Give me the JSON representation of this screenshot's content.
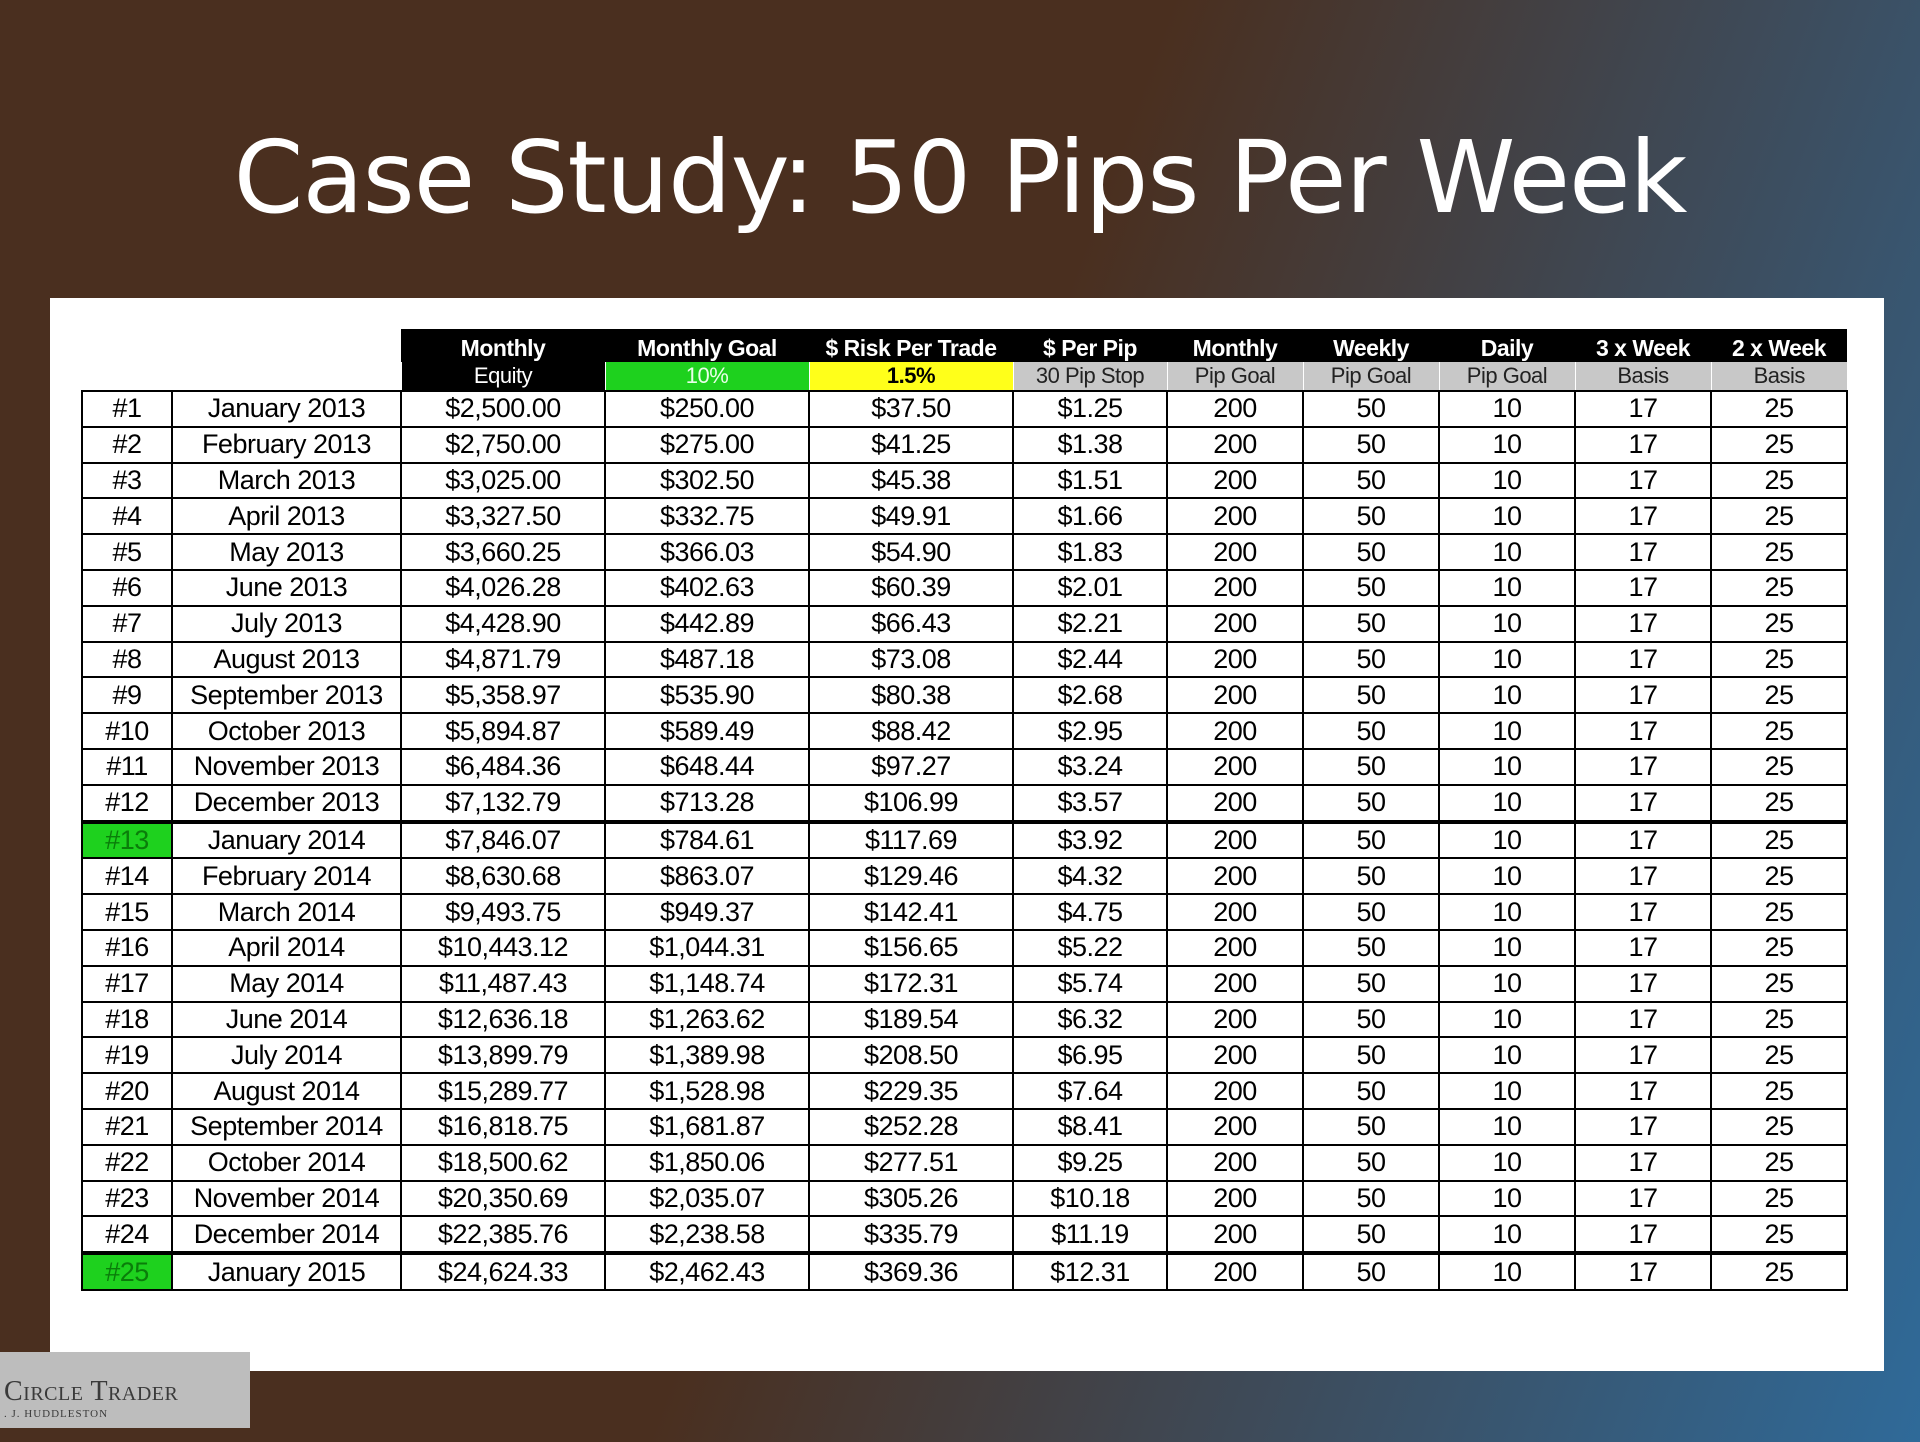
{
  "title": "Case Study: 50 Pips Per Week",
  "header_top": [
    "Monthly",
    "Monthly Goal",
    "$ Risk Per Trade",
    "$ Per Pip",
    "Monthly",
    "Weekly",
    "Daily",
    "3 x Week",
    "2 x Week"
  ],
  "header_bottom": [
    "Equity",
    "10%",
    "1.5%",
    "30 Pip Stop",
    "Pip Goal",
    "Pip Goal",
    "Pip Goal",
    "Basis",
    "Basis"
  ],
  "header_bottom_colors": {
    "green": "#1ed11e",
    "yellow": "#ffff1a",
    "gray": "#c8c8c8",
    "black": "#000000"
  },
  "highlight_color": "#1ed11e",
  "rows": [
    {
      "num": "#1",
      "month": "January 2013",
      "equity": "$2,500.00",
      "goal": "$250.00",
      "risk": "$37.50",
      "per_pip": "$1.25",
      "monthly_pips": "200",
      "weekly_pips": "50",
      "daily_pips": "10",
      "three_week": "17",
      "two_week": "25"
    },
    {
      "num": "#2",
      "month": "February 2013",
      "equity": "$2,750.00",
      "goal": "$275.00",
      "risk": "$41.25",
      "per_pip": "$1.38",
      "monthly_pips": "200",
      "weekly_pips": "50",
      "daily_pips": "10",
      "three_week": "17",
      "two_week": "25"
    },
    {
      "num": "#3",
      "month": "March 2013",
      "equity": "$3,025.00",
      "goal": "$302.50",
      "risk": "$45.38",
      "per_pip": "$1.51",
      "monthly_pips": "200",
      "weekly_pips": "50",
      "daily_pips": "10",
      "three_week": "17",
      "two_week": "25"
    },
    {
      "num": "#4",
      "month": "April 2013",
      "equity": "$3,327.50",
      "goal": "$332.75",
      "risk": "$49.91",
      "per_pip": "$1.66",
      "monthly_pips": "200",
      "weekly_pips": "50",
      "daily_pips": "10",
      "three_week": "17",
      "two_week": "25"
    },
    {
      "num": "#5",
      "month": "May 2013",
      "equity": "$3,660.25",
      "goal": "$366.03",
      "risk": "$54.90",
      "per_pip": "$1.83",
      "monthly_pips": "200",
      "weekly_pips": "50",
      "daily_pips": "10",
      "three_week": "17",
      "two_week": "25"
    },
    {
      "num": "#6",
      "month": "June 2013",
      "equity": "$4,026.28",
      "goal": "$402.63",
      "risk": "$60.39",
      "per_pip": "$2.01",
      "monthly_pips": "200",
      "weekly_pips": "50",
      "daily_pips": "10",
      "three_week": "17",
      "two_week": "25"
    },
    {
      "num": "#7",
      "month": "July 2013",
      "equity": "$4,428.90",
      "goal": "$442.89",
      "risk": "$66.43",
      "per_pip": "$2.21",
      "monthly_pips": "200",
      "weekly_pips": "50",
      "daily_pips": "10",
      "three_week": "17",
      "two_week": "25"
    },
    {
      "num": "#8",
      "month": "August 2013",
      "equity": "$4,871.79",
      "goal": "$487.18",
      "risk": "$73.08",
      "per_pip": "$2.44",
      "monthly_pips": "200",
      "weekly_pips": "50",
      "daily_pips": "10",
      "three_week": "17",
      "two_week": "25"
    },
    {
      "num": "#9",
      "month": "September 2013",
      "equity": "$5,358.97",
      "goal": "$535.90",
      "risk": "$80.38",
      "per_pip": "$2.68",
      "monthly_pips": "200",
      "weekly_pips": "50",
      "daily_pips": "10",
      "three_week": "17",
      "two_week": "25"
    },
    {
      "num": "#10",
      "month": "October 2013",
      "equity": "$5,894.87",
      "goal": "$589.49",
      "risk": "$88.42",
      "per_pip": "$2.95",
      "monthly_pips": "200",
      "weekly_pips": "50",
      "daily_pips": "10",
      "three_week": "17",
      "two_week": "25"
    },
    {
      "num": "#11",
      "month": "November 2013",
      "equity": "$6,484.36",
      "goal": "$648.44",
      "risk": "$97.27",
      "per_pip": "$3.24",
      "monthly_pips": "200",
      "weekly_pips": "50",
      "daily_pips": "10",
      "three_week": "17",
      "two_week": "25"
    },
    {
      "num": "#12",
      "month": "December 2013",
      "equity": "$7,132.79",
      "goal": "$713.28",
      "risk": "$106.99",
      "per_pip": "$3.57",
      "monthly_pips": "200",
      "weekly_pips": "50",
      "daily_pips": "10",
      "three_week": "17",
      "two_week": "25"
    },
    {
      "num": "#13",
      "month": "January 2014",
      "equity": "$7,846.07",
      "goal": "$784.61",
      "risk": "$117.69",
      "per_pip": "$3.92",
      "monthly_pips": "200",
      "weekly_pips": "50",
      "daily_pips": "10",
      "three_week": "17",
      "two_week": "25",
      "highlight": true
    },
    {
      "num": "#14",
      "month": "February 2014",
      "equity": "$8,630.68",
      "goal": "$863.07",
      "risk": "$129.46",
      "per_pip": "$4.32",
      "monthly_pips": "200",
      "weekly_pips": "50",
      "daily_pips": "10",
      "three_week": "17",
      "two_week": "25"
    },
    {
      "num": "#15",
      "month": "March 2014",
      "equity": "$9,493.75",
      "goal": "$949.37",
      "risk": "$142.41",
      "per_pip": "$4.75",
      "monthly_pips": "200",
      "weekly_pips": "50",
      "daily_pips": "10",
      "three_week": "17",
      "two_week": "25"
    },
    {
      "num": "#16",
      "month": "April 2014",
      "equity": "$10,443.12",
      "goal": "$1,044.31",
      "risk": "$156.65",
      "per_pip": "$5.22",
      "monthly_pips": "200",
      "weekly_pips": "50",
      "daily_pips": "10",
      "three_week": "17",
      "two_week": "25"
    },
    {
      "num": "#17",
      "month": "May 2014",
      "equity": "$11,487.43",
      "goal": "$1,148.74",
      "risk": "$172.31",
      "per_pip": "$5.74",
      "monthly_pips": "200",
      "weekly_pips": "50",
      "daily_pips": "10",
      "three_week": "17",
      "two_week": "25"
    },
    {
      "num": "#18",
      "month": "June 2014",
      "equity": "$12,636.18",
      "goal": "$1,263.62",
      "risk": "$189.54",
      "per_pip": "$6.32",
      "monthly_pips": "200",
      "weekly_pips": "50",
      "daily_pips": "10",
      "three_week": "17",
      "two_week": "25"
    },
    {
      "num": "#19",
      "month": "July 2014",
      "equity": "$13,899.79",
      "goal": "$1,389.98",
      "risk": "$208.50",
      "per_pip": "$6.95",
      "monthly_pips": "200",
      "weekly_pips": "50",
      "daily_pips": "10",
      "three_week": "17",
      "two_week": "25"
    },
    {
      "num": "#20",
      "month": "August 2014",
      "equity": "$15,289.77",
      "goal": "$1,528.98",
      "risk": "$229.35",
      "per_pip": "$7.64",
      "monthly_pips": "200",
      "weekly_pips": "50",
      "daily_pips": "10",
      "three_week": "17",
      "two_week": "25"
    },
    {
      "num": "#21",
      "month": "September 2014",
      "equity": "$16,818.75",
      "goal": "$1,681.87",
      "risk": "$252.28",
      "per_pip": "$8.41",
      "monthly_pips": "200",
      "weekly_pips": "50",
      "daily_pips": "10",
      "three_week": "17",
      "two_week": "25"
    },
    {
      "num": "#22",
      "month": "October 2014",
      "equity": "$18,500.62",
      "goal": "$1,850.06",
      "risk": "$277.51",
      "per_pip": "$9.25",
      "monthly_pips": "200",
      "weekly_pips": "50",
      "daily_pips": "10",
      "three_week": "17",
      "two_week": "25"
    },
    {
      "num": "#23",
      "month": "November 2014",
      "equity": "$20,350.69",
      "goal": "$2,035.07",
      "risk": "$305.26",
      "per_pip": "$10.18",
      "monthly_pips": "200",
      "weekly_pips": "50",
      "daily_pips": "10",
      "three_week": "17",
      "two_week": "25"
    },
    {
      "num": "#24",
      "month": "December 2014",
      "equity": "$22,385.76",
      "goal": "$2,238.58",
      "risk": "$335.79",
      "per_pip": "$11.19",
      "monthly_pips": "200",
      "weekly_pips": "50",
      "daily_pips": "10",
      "three_week": "17",
      "two_week": "25"
    },
    {
      "num": "#25",
      "month": "January 2015",
      "equity": "$24,624.33",
      "goal": "$2,462.43",
      "risk": "$369.36",
      "per_pip": "$12.31",
      "monthly_pips": "200",
      "weekly_pips": "50",
      "daily_pips": "10",
      "three_week": "17",
      "two_week": "25",
      "highlight": true
    }
  ],
  "logo": {
    "main": "Circle Trader",
    "sub": ". J. HUDDLESTON"
  }
}
